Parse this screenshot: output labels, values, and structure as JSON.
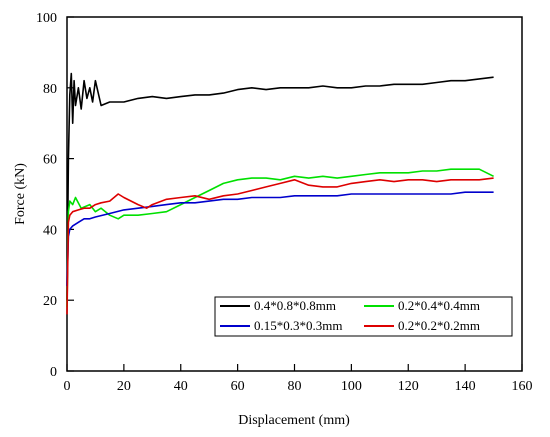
{
  "chart_data": {
    "type": "line",
    "title": "",
    "xlabel": "Displacement (mm)",
    "ylabel": "Force (kN)",
    "xlim": [
      0,
      160
    ],
    "ylim": [
      0,
      100
    ],
    "xticks": [
      0,
      20,
      40,
      60,
      80,
      100,
      120,
      140,
      160
    ],
    "yticks": [
      0,
      20,
      40,
      60,
      80,
      100
    ],
    "grid": false,
    "legend_position": "bottom-right",
    "series": [
      {
        "name": "0.4*0.8*0.8mm",
        "color": "#000000",
        "x": [
          0,
          0.5,
          1,
          1.5,
          2,
          2.5,
          3,
          4,
          5,
          6,
          7,
          8,
          9,
          10,
          12,
          15,
          20,
          25,
          30,
          35,
          40,
          45,
          50,
          55,
          60,
          65,
          70,
          75,
          80,
          85,
          90,
          95,
          100,
          105,
          110,
          115,
          120,
          125,
          130,
          135,
          140,
          145,
          150
        ],
        "y": [
          20,
          60,
          78,
          84,
          70,
          82,
          75,
          80,
          74,
          82,
          77,
          80,
          76,
          82,
          75,
          76,
          76,
          77,
          77.5,
          77,
          77.5,
          78,
          78,
          78.5,
          79.5,
          80,
          79.5,
          80,
          80,
          80,
          80.5,
          80,
          80,
          80.5,
          80.5,
          81,
          81,
          81,
          81.5,
          82,
          82,
          82.5,
          83
        ]
      },
      {
        "name": "0.2*0.4*0.4mm",
        "color": "#00e000",
        "x": [
          0,
          0.5,
          1,
          2,
          3,
          5,
          8,
          10,
          12,
          15,
          18,
          20,
          25,
          30,
          35,
          40,
          45,
          50,
          55,
          60,
          65,
          70,
          75,
          80,
          85,
          90,
          95,
          100,
          105,
          110,
          115,
          120,
          125,
          130,
          135,
          140,
          145,
          150
        ],
        "y": [
          18,
          45,
          48,
          47,
          49,
          46,
          47,
          45,
          46,
          44,
          43,
          44,
          44,
          44.5,
          45,
          47,
          49,
          51,
          53,
          54,
          54.5,
          54.5,
          54,
          55,
          54.5,
          55,
          54.5,
          55,
          55.5,
          56,
          56,
          56,
          56.5,
          56.5,
          57,
          57,
          57,
          55
        ]
      },
      {
        "name": "0.15*0.3*0.3mm",
        "color": "#0000cc",
        "x": [
          0,
          0.5,
          1,
          2,
          4,
          6,
          8,
          10,
          15,
          20,
          25,
          30,
          35,
          40,
          45,
          50,
          55,
          60,
          65,
          70,
          75,
          80,
          85,
          90,
          95,
          100,
          105,
          110,
          115,
          120,
          125,
          130,
          135,
          140,
          145,
          150
        ],
        "y": [
          24,
          38,
          40,
          41,
          42,
          43,
          43,
          43.5,
          44.5,
          45.5,
          46,
          46.5,
          47,
          47.5,
          47.5,
          48,
          48.5,
          48.5,
          49,
          49,
          49,
          49.5,
          49.5,
          49.5,
          49.5,
          50,
          50,
          50,
          50,
          50,
          50,
          50,
          50,
          50.5,
          50.5,
          50.5
        ]
      },
      {
        "name": "0.2*0.2*0.2mm",
        "color": "#dd0000",
        "x": [
          0,
          0.5,
          1,
          2,
          4,
          6,
          8,
          10,
          12,
          15,
          18,
          20,
          25,
          28,
          30,
          35,
          40,
          45,
          50,
          55,
          60,
          65,
          70,
          75,
          80,
          85,
          90,
          95,
          100,
          105,
          110,
          115,
          120,
          125,
          130,
          135,
          140,
          145,
          150
        ],
        "y": [
          16,
          42,
          44,
          45,
          45.5,
          46,
          46,
          47,
          47.5,
          48,
          50,
          49,
          47,
          46,
          47,
          48.5,
          49,
          49.5,
          48.5,
          49.5,
          50,
          51,
          52,
          53,
          54,
          52.5,
          52,
          52,
          53,
          53.5,
          54,
          53.5,
          54,
          54,
          53.5,
          54,
          54,
          54,
          54.5
        ]
      }
    ]
  }
}
